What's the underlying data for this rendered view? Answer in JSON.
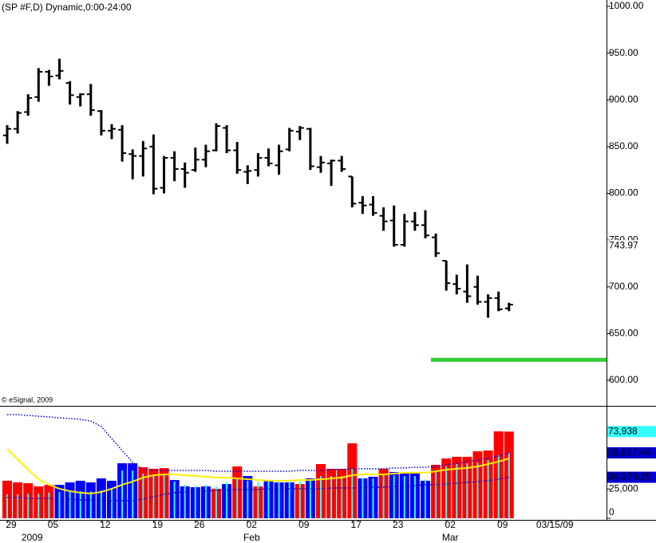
{
  "chart_data": {
    "type": "ohlc",
    "title": "(SP #F,D) Dynamic,0:00-24:00",
    "copyright": "© eSignal, 2009",
    "color": "#000000",
    "categories": [
      "29",
      null,
      null,
      null,
      "05",
      null,
      null,
      null,
      null,
      "12",
      null,
      null,
      null,
      null,
      "19",
      null,
      null,
      null,
      "26",
      null,
      null,
      null,
      null,
      "02",
      null,
      null,
      null,
      null,
      "09",
      null,
      null,
      null,
      null,
      "17",
      null,
      null,
      null,
      "23",
      null,
      null,
      null,
      null,
      "02",
      null,
      null,
      null,
      null,
      "09",
      null,
      null,
      null,
      null,
      "03/15/09"
    ],
    "periods": [
      null,
      null,
      "2009",
      null,
      null,
      null,
      null,
      null,
      null,
      null,
      null,
      null,
      null,
      null,
      null,
      null,
      null,
      null,
      null,
      null,
      null,
      null,
      null,
      "Feb",
      null,
      null,
      null,
      null,
      null,
      null,
      null,
      null,
      null,
      null,
      null,
      null,
      null,
      null,
      null,
      null,
      null,
      null,
      "Mar",
      null,
      null,
      null,
      null,
      null,
      null,
      null,
      null,
      null,
      null
    ],
    "open": [
      862,
      869,
      887,
      903,
      930,
      926,
      918,
      903,
      906,
      888,
      867,
      868,
      842,
      840,
      850,
      806,
      838,
      826,
      825,
      836,
      846,
      870,
      846,
      823,
      825,
      838,
      830,
      847,
      866,
      869,
      828,
      832,
      835,
      818,
      790,
      788,
      776,
      771,
      745,
      770,
      766,
      753,
      728,
      703,
      695,
      700,
      684,
      688,
      677,
      null,
      null,
      null,
      null
    ],
    "high": [
      873,
      888,
      906,
      934,
      932,
      944,
      920,
      907,
      917,
      889,
      874,
      873,
      847,
      856,
      863,
      840,
      845,
      833,
      849,
      852,
      875,
      873,
      855,
      830,
      843,
      848,
      852,
      870,
      872,
      870,
      840,
      836,
      840,
      818,
      797,
      797,
      785,
      787,
      778,
      780,
      782,
      757,
      728,
      713,
      724,
      712,
      692,
      695,
      683,
      null,
      null,
      null,
      null
    ],
    "low": [
      853,
      864,
      883,
      898,
      915,
      922,
      895,
      893,
      883,
      862,
      858,
      834,
      815,
      818,
      799,
      800,
      813,
      806,
      823,
      828,
      845,
      843,
      821,
      810,
      818,
      829,
      820,
      845,
      857,
      825,
      822,
      808,
      823,
      785,
      778,
      776,
      760,
      743,
      743,
      760,
      752,
      732,
      696,
      692,
      683,
      681,
      667,
      674,
      674,
      null,
      null,
      null,
      null
    ],
    "close": [
      869,
      886,
      902,
      930,
      925,
      931,
      905,
      906,
      889,
      867,
      869,
      843,
      840,
      848,
      805,
      838,
      826,
      822,
      836,
      845,
      872,
      846,
      825,
      824,
      838,
      832,
      845,
      867,
      870,
      829,
      833,
      835,
      826,
      789,
      787,
      779,
      770,
      745,
      770,
      766,
      755,
      736,
      704,
      698,
      690,
      684,
      688,
      676,
      681,
      null,
      null,
      null,
      null
    ],
    "ylim": [
      573.6,
      1006.8
    ],
    "yticks": [
      {
        "value": 600,
        "label": "600.00"
      },
      {
        "value": 650,
        "label": "650.00"
      },
      {
        "value": 700,
        "label": "700.00"
      },
      {
        "value": 750,
        "label": "750.00"
      },
      {
        "value": 800,
        "label": "800.00"
      },
      {
        "value": 850,
        "label": "850.00"
      },
      {
        "value": 900,
        "label": "900.00"
      },
      {
        "value": 950,
        "label": "950.00"
      },
      {
        "value": 1000,
        "label": "1000.00"
      }
    ],
    "marker": {
      "value": 743.97,
      "label": "743.97"
    },
    "hline": {
      "value": 622,
      "color": "#33cc33"
    },
    "volume": {
      "type": "bar",
      "ylim": [
        0,
        95170
      ],
      "yticks": [
        0,
        {
          "value": 25000,
          "label": "25,000"
        }
      ],
      "values": [
        32000,
        30600,
        29900,
        27200,
        28500,
        28500,
        30600,
        32000,
        30600,
        34000,
        32000,
        46900,
        46900,
        43500,
        42200,
        42800,
        32600,
        27200,
        26500,
        27200,
        25200,
        29200,
        44200,
        36000,
        27200,
        32000,
        30600,
        30600,
        29200,
        34000,
        46200,
        42200,
        42200,
        63900,
        34000,
        35400,
        42200,
        39400,
        38800,
        38800,
        32000,
        45600,
        51000,
        52400,
        52400,
        57100,
        57800,
        74100,
        73938,
        null,
        null,
        null,
        null
      ],
      "value_labels": [
        null,
        null,
        null,
        null,
        null,
        null,
        null,
        null,
        null,
        null,
        null,
        null,
        null,
        null,
        null,
        null,
        null,
        null,
        null,
        null,
        null,
        null,
        null,
        null,
        null,
        null,
        null,
        null,
        null,
        null,
        null,
        null,
        null,
        null,
        null,
        null,
        null,
        null,
        null,
        null,
        null,
        null,
        null,
        null,
        null,
        null,
        null,
        null,
        "73,938",
        null,
        null,
        null,
        null
      ],
      "label_color": "#33ffff",
      "colors": [
        "#ff0000",
        "#ff0000",
        "#ff0000",
        "#ff0000",
        "#ff0000",
        "#0000ff",
        "#0000ff",
        "#0000ff",
        "#0000ff",
        "#0000ff",
        "#0000ff",
        "#0000ff",
        "#0000ff",
        "#ff0000",
        "#ff0000",
        "#ff0000",
        "#0000ff",
        "#0000ff",
        "#0000ff",
        "#0000ff",
        "#ff0000",
        "#0000ff",
        "#ff0000",
        "#0000ff",
        "#ff0000",
        "#0000ff",
        "#0000ff",
        "#0000ff",
        "#ff0000",
        "#0000ff",
        "#ff0000",
        "#ff0000",
        "#ff0000",
        "#ff0000",
        "#0000ff",
        "#0000ff",
        "#ff0000",
        "#0000ff",
        "#0000ff",
        "#0000ff",
        "#0000ff",
        "#ff0000",
        "#ff0000",
        "#ff0000",
        "#ff0000",
        "#ff0000",
        "#ff0000",
        "#ff0000",
        "#ff0000",
        null,
        null,
        null,
        null
      ],
      "series": [
        {
          "style": "stick",
          "color": "#33ffff",
          "values": [
            20400,
            20400,
            21000,
            21000,
            22000,
            22400,
            22400,
            23000,
            23000,
            23800,
            24500,
            40800,
            40800,
            38000,
            37400,
            37400,
            31300,
            28600,
            27900,
            28600,
            27200,
            30600,
            33300,
            32000,
            31300,
            31300,
            32600,
            32600,
            31300,
            33300,
            36000,
            36000,
            36000,
            42200,
            34000,
            34000,
            37400,
            36700,
            36000,
            36000,
            33300,
            40800,
            44200,
            46200,
            46900,
            47600,
            49600,
            53700,
            55800,
            null,
            null,
            null,
            null
          ]
        },
        {
          "style": "line",
          "color": "#ffee00",
          "values": [
            59200,
            50300,
            41500,
            33300,
            28600,
            25200,
            23100,
            21800,
            21100,
            22400,
            25200,
            28600,
            31300,
            34700,
            36700,
            37400,
            37400,
            36700,
            36000,
            35400,
            34700,
            34700,
            34000,
            33300,
            32600,
            32000,
            32000,
            32000,
            32600,
            32600,
            33300,
            34000,
            34700,
            36700,
            37400,
            37400,
            37400,
            38100,
            38800,
            38800,
            38800,
            40100,
            41500,
            42200,
            42900,
            44200,
            46200,
            48300,
            51000,
            null,
            null,
            null,
            null
          ]
        },
        {
          "style": "dotted",
          "color": "#0000cc",
          "values": [
            88400,
            88400,
            87700,
            87000,
            86400,
            85700,
            85000,
            84300,
            82900,
            78200,
            68000,
            57800,
            47600,
            41500,
            40800,
            40800,
            40800,
            40800,
            40800,
            40800,
            40100,
            40100,
            40100,
            40100,
            40100,
            40100,
            40100,
            40100,
            40800,
            40800,
            40800,
            41500,
            41500,
            42200,
            42200,
            42200,
            42200,
            42900,
            42900,
            43500,
            43500,
            44200,
            45600,
            46900,
            48300,
            49600,
            51000,
            53000,
            55817.44,
            null,
            null,
            null,
            null
          ],
          "value_labels": [
            null,
            null,
            null,
            null,
            null,
            null,
            null,
            null,
            null,
            null,
            null,
            null,
            null,
            null,
            null,
            null,
            null,
            null,
            null,
            null,
            null,
            null,
            null,
            null,
            null,
            null,
            null,
            null,
            null,
            null,
            null,
            null,
            null,
            null,
            null,
            null,
            null,
            null,
            null,
            null,
            null,
            null,
            null,
            null,
            null,
            null,
            null,
            null,
            "55,817.44",
            null,
            null,
            null,
            null
          ]
        },
        {
          "style": "dotted",
          "color": "#0000cc",
          "values": [
            17700,
            17700,
            17000,
            17000,
            17000,
            16300,
            16300,
            15600,
            15600,
            15000,
            15000,
            15000,
            15000,
            16300,
            18400,
            20400,
            21800,
            22400,
            23100,
            23100,
            23800,
            23800,
            24500,
            24500,
            24500,
            25200,
            25200,
            25200,
            25200,
            25200,
            25200,
            25800,
            25800,
            25800,
            26500,
            26500,
            26500,
            27200,
            27200,
            27900,
            28600,
            28600,
            29200,
            29900,
            30600,
            31300,
            32000,
            33300,
            34979.25,
            null,
            null,
            null,
            null
          ],
          "value_labels": [
            null,
            null,
            null,
            null,
            null,
            null,
            null,
            null,
            null,
            null,
            null,
            null,
            null,
            null,
            null,
            null,
            null,
            null,
            null,
            null,
            null,
            null,
            null,
            null,
            null,
            null,
            null,
            null,
            null,
            null,
            null,
            null,
            null,
            null,
            null,
            null,
            null,
            null,
            null,
            null,
            null,
            null,
            null,
            null,
            null,
            null,
            null,
            null,
            "34,979.25",
            null,
            null,
            null,
            null
          ]
        }
      ]
    }
  }
}
